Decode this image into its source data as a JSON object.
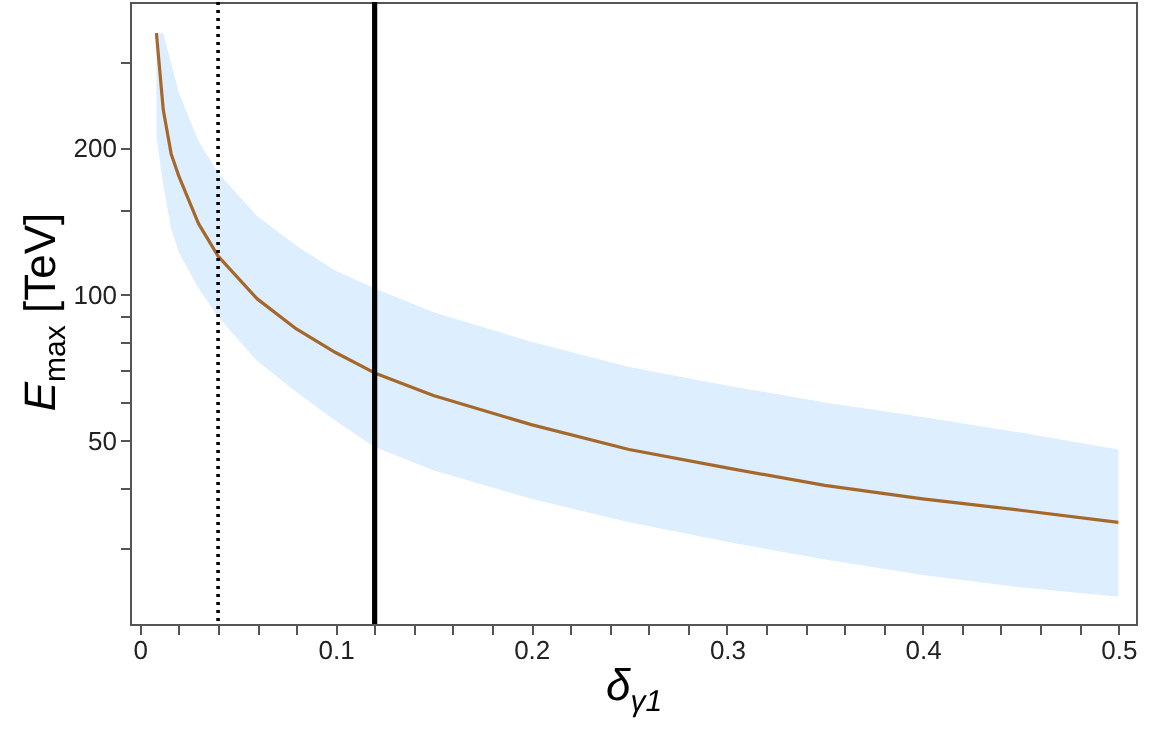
{
  "chart_data": {
    "type": "line",
    "xlabel": "δ$_{γ1}$",
    "ylabel": "E$_{max}$ [TeV]",
    "x": [
      0.0085,
      0.012,
      0.016,
      0.02,
      0.03,
      0.04,
      0.06,
      0.08,
      0.1,
      0.12,
      0.15,
      0.2,
      0.25,
      0.3,
      0.35,
      0.4,
      0.45,
      0.5
    ],
    "series": [
      {
        "color": "#a5682a",
        "values": [
          345,
          240,
          195,
          175,
          140,
          120,
          98,
          85,
          76,
          69,
          62,
          54,
          48,
          44,
          40.5,
          38,
          36,
          34
        ],
        "lower": [
          212,
          168,
          137,
          122,
          103,
          90,
          73,
          63,
          55,
          48.6,
          43.5,
          38,
          34,
          31,
          28.5,
          26.5,
          25,
          23.9
        ],
        "upper": [
          345,
          345,
          300,
          260,
          207,
          178,
          145,
          126,
          112,
          103,
          92,
          80,
          71,
          65,
          60,
          56,
          52,
          48
        ]
      }
    ],
    "log": "y",
    "xlim": [
      -0.005,
      0.509
    ],
    "ylim": [
      21,
      400
    ],
    "xticks": [
      0,
      {
        "value": 0.02,
        "label": null
      },
      {
        "value": 0.04,
        "label": null
      },
      {
        "value": 0.06,
        "label": null
      },
      {
        "value": 0.08,
        "label": null
      },
      {
        "value": 0.1,
        "label": "0.1"
      },
      {
        "value": 0.12,
        "label": null
      },
      {
        "value": 0.14,
        "label": null
      },
      {
        "value": 0.16,
        "label": null
      },
      {
        "value": 0.18,
        "label": null
      },
      {
        "value": 0.2,
        "label": "0.2"
      },
      {
        "value": 0.22,
        "label": null
      },
      {
        "value": 0.24,
        "label": null
      },
      {
        "value": 0.26,
        "label": null
      },
      {
        "value": 0.28,
        "label": null
      },
      {
        "value": 0.3,
        "label": "0.3"
      },
      {
        "value": 0.32,
        "label": null
      },
      {
        "value": 0.34,
        "label": null
      },
      {
        "value": 0.36,
        "label": null
      },
      {
        "value": 0.38,
        "label": null
      },
      {
        "value": 0.4,
        "label": "0.4"
      },
      {
        "value": 0.42,
        "label": null
      },
      {
        "value": 0.44,
        "label": null
      },
      {
        "value": 0.46,
        "label": null
      },
      {
        "value": 0.48,
        "label": null
      },
      {
        "value": 0.5,
        "label": "0.5"
      }
    ],
    "yticks": [
      {
        "value": 30,
        "label": null
      },
      {
        "value": 40,
        "label": null
      },
      50,
      {
        "value": 60,
        "label": null
      },
      {
        "value": 70,
        "label": null
      },
      {
        "value": 80,
        "label": null
      },
      {
        "value": 90,
        "label": null
      },
      100,
      {
        "value": 150,
        "label": null
      },
      200,
      {
        "value": 300,
        "label": null
      }
    ],
    "ref_lines": [
      {
        "axis": "x",
        "value": 0.04,
        "color": "#000000",
        "line_style": "dotted"
      },
      {
        "axis": "x",
        "value": 0.12,
        "color": "#000000",
        "line_style": "solid"
      }
    ],
    "grid": false,
    "marker": "none",
    "line_style": "solid"
  }
}
